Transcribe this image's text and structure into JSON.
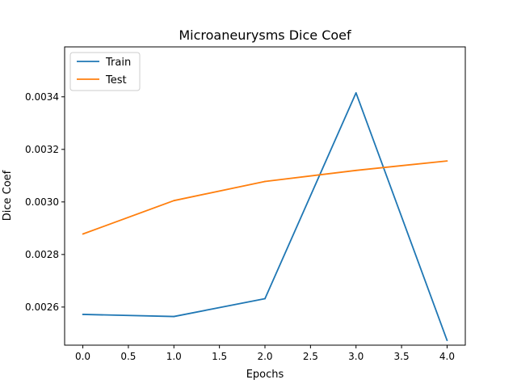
{
  "chart_data": {
    "type": "line",
    "title": "Microaneurysms Dice Coef",
    "xlabel": "Epochs",
    "ylabel": "Dice Coef",
    "x": [
      0,
      1,
      2,
      3,
      4
    ],
    "xlim": [
      -0.2,
      4.2
    ],
    "ylim": [
      0.002455,
      0.00359
    ],
    "x_ticks": [
      "0.0",
      "0.5",
      "1.0",
      "1.5",
      "2.0",
      "2.5",
      "3.0",
      "3.5",
      "4.0"
    ],
    "y_ticks": [
      "0.0026",
      "0.0028",
      "0.0030",
      "0.0032",
      "0.0034"
    ],
    "legend_position": "top-left",
    "grid": false,
    "series": [
      {
        "name": "Train",
        "color": "#1f77b4",
        "values": [
          0.002572,
          0.002564,
          0.002632,
          0.003415,
          0.002473
        ]
      },
      {
        "name": "Test",
        "color": "#ff7f0e",
        "values": [
          0.002878,
          0.003005,
          0.003078,
          0.00312,
          0.003156
        ]
      }
    ]
  }
}
